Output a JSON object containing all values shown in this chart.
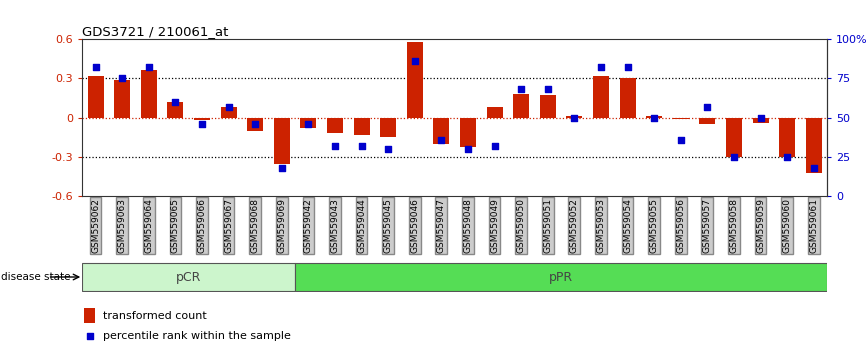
{
  "title": "GDS3721 / 210061_at",
  "samples": [
    "GSM559062",
    "GSM559063",
    "GSM559064",
    "GSM559065",
    "GSM559066",
    "GSM559067",
    "GSM559068",
    "GSM559069",
    "GSM559042",
    "GSM559043",
    "GSM559044",
    "GSM559045",
    "GSM559046",
    "GSM559047",
    "GSM559048",
    "GSM559049",
    "GSM559050",
    "GSM559051",
    "GSM559052",
    "GSM559053",
    "GSM559054",
    "GSM559055",
    "GSM559056",
    "GSM559057",
    "GSM559058",
    "GSM559059",
    "GSM559060",
    "GSM559061"
  ],
  "transformed_count": [
    0.32,
    0.29,
    0.36,
    0.12,
    -0.02,
    0.08,
    -0.1,
    -0.35,
    -0.08,
    -0.12,
    -0.13,
    -0.15,
    0.58,
    -0.2,
    -0.22,
    0.08,
    0.18,
    0.17,
    0.01,
    0.32,
    0.3,
    0.01,
    -0.01,
    -0.05,
    -0.3,
    -0.04,
    -0.3,
    -0.42
  ],
  "percentile_rank": [
    82,
    75,
    82,
    60,
    46,
    57,
    46,
    18,
    46,
    32,
    32,
    30,
    86,
    36,
    30,
    32,
    68,
    68,
    50,
    82,
    82,
    50,
    36,
    57,
    25,
    50,
    25,
    18
  ],
  "pCR_count": 8,
  "pPR_count": 20,
  "bar_color": "#cc2200",
  "dot_color": "#0000cc",
  "pCR_facecolor": "#ccf5cc",
  "pPR_facecolor": "#55dd55",
  "ylim": [
    -0.6,
    0.6
  ],
  "yticks_left": [
    -0.6,
    -0.3,
    0.0,
    0.3,
    0.6
  ],
  "yticks_right_pct": [
    0,
    25,
    50,
    75,
    100
  ],
  "hlines_black": [
    -0.3,
    0.3
  ],
  "tick_bg_color": "#cccccc",
  "border_color": "#555555"
}
